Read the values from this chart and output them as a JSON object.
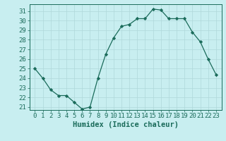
{
  "x": [
    0,
    1,
    2,
    3,
    4,
    5,
    6,
    7,
    8,
    9,
    10,
    11,
    12,
    13,
    14,
    15,
    16,
    17,
    18,
    19,
    20,
    21,
    22,
    23
  ],
  "y": [
    25.0,
    24.0,
    22.8,
    22.2,
    22.2,
    21.5,
    20.8,
    21.0,
    24.0,
    26.5,
    28.2,
    29.4,
    29.6,
    30.2,
    30.2,
    31.2,
    31.1,
    30.2,
    30.2,
    30.2,
    28.8,
    27.8,
    26.0,
    24.4
  ],
  "line_color": "#1a6b5a",
  "marker": "D",
  "marker_size": 2.2,
  "linewidth": 0.9,
  "xlabel": "Humidex (Indice chaleur)",
  "ylim": [
    20.7,
    31.7
  ],
  "yticks": [
    21,
    22,
    23,
    24,
    25,
    26,
    27,
    28,
    29,
    30,
    31
  ],
  "xticks": [
    0,
    1,
    2,
    3,
    4,
    5,
    6,
    7,
    8,
    9,
    10,
    11,
    12,
    13,
    14,
    15,
    16,
    17,
    18,
    19,
    20,
    21,
    22,
    23
  ],
  "bg_color": "#c8eef0",
  "grid_color": "#afd8da",
  "axis_color": "#1a6b5a",
  "tick_label_color": "#1a6b5a",
  "xlabel_color": "#1a6b5a",
  "xlabel_fontsize": 7.5,
  "tick_fontsize": 6.5
}
